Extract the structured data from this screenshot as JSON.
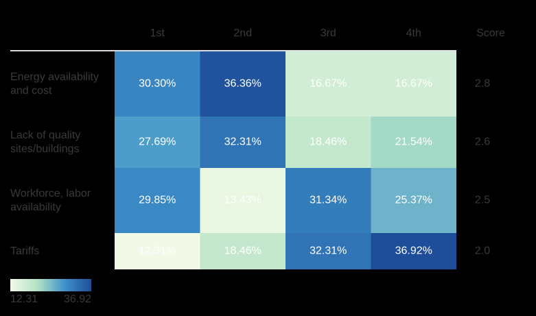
{
  "chart_data": {
    "type": "heatmap",
    "columns": [
      "1st",
      "2nd",
      "3rd",
      "4th"
    ],
    "score_header": "Score",
    "rows": [
      "Energy availability and cost",
      "Lack of quality sites/buildings",
      "Workforce, labor availability",
      "Tariffs"
    ],
    "values": [
      [
        30.3,
        36.36,
        16.67,
        16.67
      ],
      [
        27.69,
        32.31,
        18.46,
        21.54
      ],
      [
        29.85,
        13.43,
        31.34,
        25.37
      ],
      [
        12.31,
        18.46,
        32.31,
        36.92
      ]
    ],
    "value_labels": [
      [
        "30.30%",
        "36.36%",
        "16.67%",
        "16.67%"
      ],
      [
        "27.69%",
        "32.31%",
        "18.46%",
        "21.54%"
      ],
      [
        "29.85%",
        "13.43%",
        "31.34%",
        "25.37%"
      ],
      [
        "12.31%",
        "18.46%",
        "32.31%",
        "36.92%"
      ]
    ],
    "scores": [
      2.8,
      2.6,
      2.5,
      {
        "value": 2,
        "label": "2.0"
      }
    ],
    "zlim": [
      12.31,
      36.92
    ],
    "colorscale": [
      "#f2f9e6",
      "#b3e2c6",
      "#3e93cb",
      "#1e4d9a"
    ]
  }
}
